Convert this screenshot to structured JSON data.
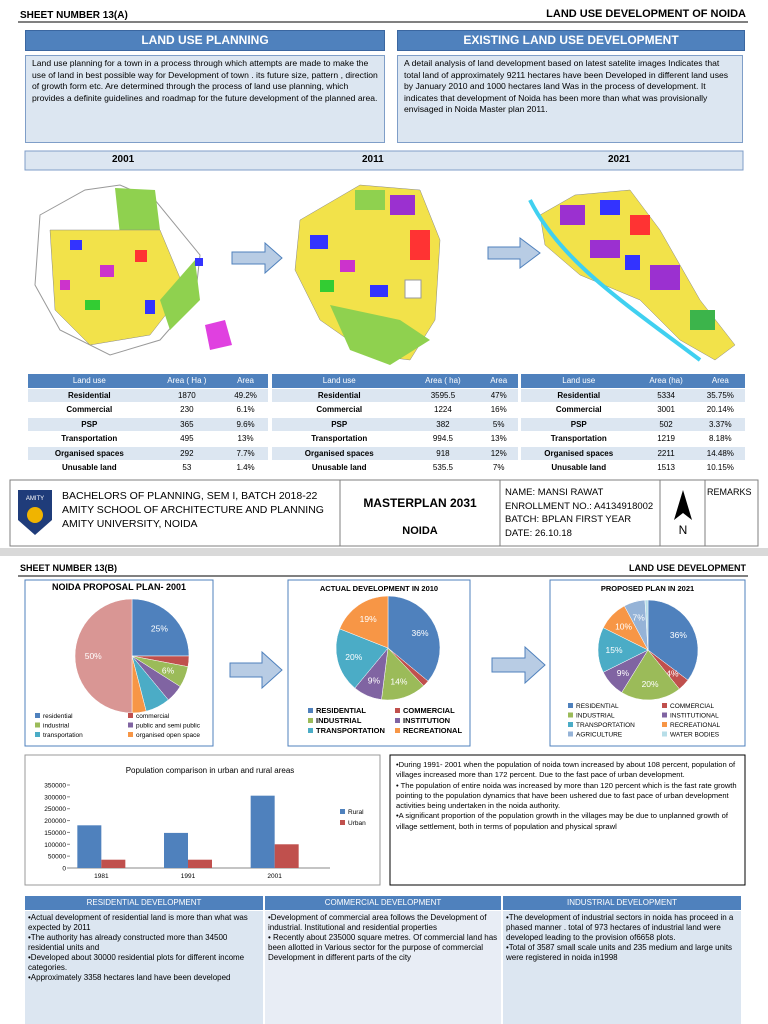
{
  "sheet_a": {
    "sheet_number": "SHEET NUMBER 13(A)",
    "title": "LAND USE DEVELOPMENT OF NOIDA",
    "panels": [
      {
        "heading": "LAND USE PLANNING",
        "text": "Land use planning for a town in a process through which attempts are made to make the use of land in best possible way for Development of town . its future size, pattern , direction of growth form etc. Are determined through the process of land use planning, which provides a definite guidelines and roadmap for the future development of the planned area."
      },
      {
        "heading": "EXISTING LAND USE DEVELOPMENT",
        "text": "A detail analysis of land development based on latest satelite images Indicates that total land of approximately 9211 hectares have been Developed in different land uses by January 2010 and 1000 hectares land Was in the process of development. It indicates that development of Noida has been more than what was provisionally envisaged in Noida Master plan 2011."
      }
    ],
    "years": [
      "2001",
      "2011",
      "2021"
    ],
    "tables": [
      {
        "header": [
          "Land use",
          "Area ( Ha )",
          "Area"
        ],
        "rows": [
          [
            "Residential",
            "1870",
            "49.2%"
          ],
          [
            "Commercial",
            "230",
            "6.1%"
          ],
          [
            "PSP",
            "365",
            "9.6%"
          ],
          [
            "Transportation",
            "495",
            "13%"
          ],
          [
            "Organised spaces",
            "292",
            "7.7%"
          ],
          [
            "Unusable land",
            "53",
            "1.4%"
          ]
        ]
      },
      {
        "header": [
          "Land use",
          "Area ( ha)",
          "Area"
        ],
        "rows": [
          [
            "Residential",
            "3595.5",
            "47%"
          ],
          [
            "Commercial",
            "1224",
            "16%"
          ],
          [
            "PSP",
            "382",
            "5%"
          ],
          [
            "Transportation",
            "994.5",
            "13%"
          ],
          [
            "Organised spaces",
            "918",
            "12%"
          ],
          [
            "Unusable land",
            "535.5",
            "7%"
          ]
        ]
      },
      {
        "header": [
          "Land use",
          "Area (ha)",
          "Area"
        ],
        "rows": [
          [
            "Residential",
            "5334",
            "35.75%"
          ],
          [
            "Commercial",
            "3001",
            "20.14%"
          ],
          [
            "PSP",
            "502",
            "3.37%"
          ],
          [
            "Transportation",
            "1219",
            "8.18%"
          ],
          [
            "Organised spaces",
            "2211",
            "14.48%"
          ],
          [
            "Unusable land",
            "1513",
            "10.15%"
          ]
        ]
      }
    ]
  },
  "footer": {
    "logo": "AMITY",
    "lines": [
      "BACHELORS OF PLANNING, SEM I, BATCH 2018-22",
      "AMITY SCHOOL OF ARCHITECTURE AND PLANNING",
      "AMITY UNIVERSITY, NOIDA"
    ],
    "plan": "MASTERPLAN 2031",
    "place": "NOIDA",
    "details": [
      "NAME: MANSI RAWAT",
      "ENROLLMENT NO.: A4134918002",
      "BATCH: BPLAN FIRST YEAR",
      "DATE: 26.10.18"
    ],
    "north": "N",
    "remarks": "REMARKS"
  },
  "sheet_b": {
    "sheet_number": "SHEET NUMBER 13(B)",
    "title": "LAND USE DEVELOPMENT",
    "text_box": [
      "•During 1991- 2001 when the population of noida town increased by about 108 percent, population of villages increased more than 172 percent. Due to the fast pace of urban development.",
      "• The population of entire noida was increased by more than 120 percent which is the fast rate growth pointing to the population dynamics that have been ushered due to fast pace of urban development activities being undertaken in the noida authority.",
      "•A significant proportion of the population growth in the villages may be due to unplanned growth of village settlement, both in terms of population and physical sprawl"
    ],
    "columns": [
      {
        "heading": "RESIDENTIAL DEVELOPMENT",
        "items": [
          "•Actual development of residential land is more than what was expected by 2011",
          "•The authority has already constructed more than 34500 residential units and",
          "•Developed about 30000 residential plots for different income categories.",
          "•Approximately 3358 hectares land have been developed"
        ]
      },
      {
        "heading": "COMMERCIAL DEVELOPMENT",
        "items": [
          "•Development of commercial area follows the Development of industrial. Institutional and residential properties",
          "• Recently about 235000 square metres. Of commercial land has been allotted in Various sector for the purpose of commercial",
          "Development in different parts of the city"
        ]
      },
      {
        "heading": "INDUSTRIAL DEVELOPMENT",
        "items": [
          "•The development of industrial sectors in noida has proceed in a phased manner . total of 973 hectares of industrial land were developed leading to the provision of6658 plots.",
          "•Total of 3587 small scale units and 235 medium and large units were registered in noida in1998"
        ]
      }
    ]
  },
  "chart_data": [
    {
      "type": "pie",
      "title": "NOIDA PROPOSAL PLAN- 2001",
      "categories": [
        "residential",
        "commercial",
        "industrial",
        "public and semi public",
        "transportation",
        "organised open space",
        null
      ],
      "values": [
        25,
        3,
        6,
        5,
        7,
        4,
        50
      ],
      "value_labels": [
        "25%",
        null,
        "6%",
        null,
        null,
        null,
        "50%"
      ],
      "colors": [
        "#4f81bd",
        "#c0504d",
        "#9bbb59",
        "#8064a2",
        "#4bacc6",
        "#f79646",
        "#d99694"
      ]
    },
    {
      "type": "pie",
      "title": "ACTUAL DEVELOPMENT IN 2010",
      "categories": [
        "RESIDENTIAL",
        "COMMERCIAL",
        "INDUSTRIAL",
        "INSTITUTION",
        "TRANSPORTATION",
        "RECREATIONAL"
      ],
      "values": [
        36,
        2,
        14,
        9,
        20,
        19
      ],
      "value_labels": [
        "36%",
        null,
        "14%",
        "9%",
        "20%",
        "19%"
      ],
      "colors": [
        "#4f81bd",
        "#c0504d",
        "#9bbb59",
        "#8064a2",
        "#4bacc6",
        "#f79646"
      ]
    },
    {
      "type": "pie",
      "title": "PROPOSED PLAN IN 2021",
      "categories": [
        "RESIDENTIAL",
        "COMMERCIAL",
        "INDUSTRIAL",
        "INSTITUTIONAL",
        "TRANSPORTATION",
        "RECREATIONAL",
        "AGRICULTURE",
        "WATER BODIES"
      ],
      "values": [
        36,
        4,
        20,
        9,
        15,
        10,
        7,
        1
      ],
      "value_labels": [
        "36%",
        "4%",
        "20%",
        "9%",
        "15%",
        "10%",
        "7%",
        null
      ],
      "colors": [
        "#4f81bd",
        "#c0504d",
        "#9bbb59",
        "#8064a2",
        "#4bacc6",
        "#f79646",
        "#95b3d7",
        "#b7dee8"
      ]
    },
    {
      "type": "bar",
      "title": "Population comparison in urban and rural areas",
      "categories": [
        "1981",
        "1991",
        "2001"
      ],
      "series": [
        {
          "name": "Rural",
          "color": "#4f81bd",
          "values": [
            180000,
            148000,
            305000
          ]
        },
        {
          "name": "Urban",
          "color": "#c0504d",
          "values": [
            35000,
            35000,
            100000
          ]
        }
      ],
      "ylim": [
        0,
        350000
      ],
      "yticks": [
        0,
        50000,
        100000,
        150000,
        200000,
        250000,
        300000,
        350000
      ],
      "grid": false,
      "legend": "right"
    }
  ]
}
